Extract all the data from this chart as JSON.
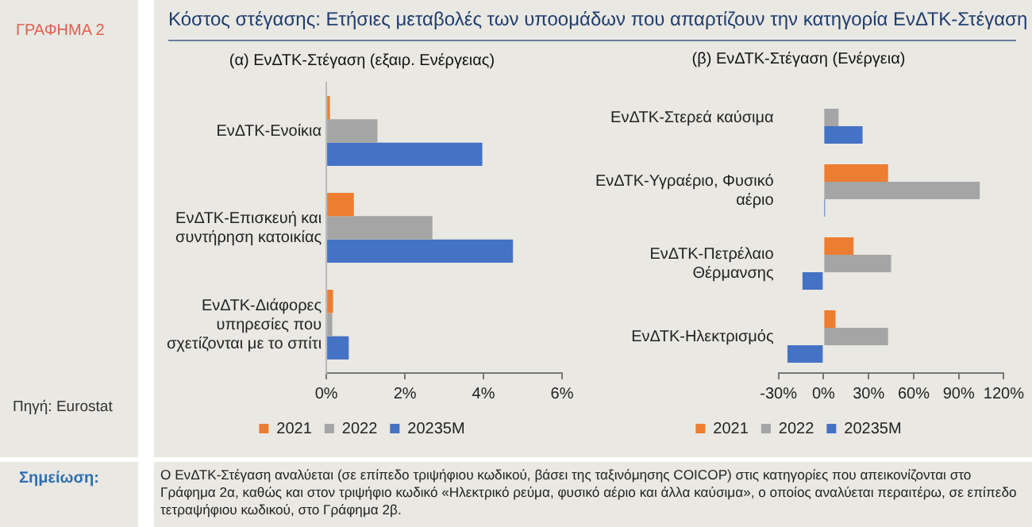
{
  "chart_data": [
    {
      "type": "bar",
      "orientation": "horizontal",
      "title": "Κόστος στέγασης: Ετήσιες μεταβολές  των υποομάδων που απαρτίζουν την κατηγορία ΕνΔΤΚ-Στέγαση",
      "subtitle": "(α) ΕνΔΤΚ-Στέγαση (εξαιρ. Ενέργειας)",
      "categories": [
        "ΕνΔΤΚ-Ενοίκια",
        "ΕνΔΤΚ-Επισκευή και συντήρηση κατοικίας",
        "ΕνΔΤΚ-Διάφορες υπηρεσίες που σχετίζονται με το σπίτι"
      ],
      "series": [
        {
          "name": "2021",
          "color": "#ed7d31",
          "values": [
            0.09,
            0.7,
            0.17
          ]
        },
        {
          "name": "2022",
          "color": "#a5a5a5",
          "values": [
            1.3,
            2.7,
            0.15
          ]
        },
        {
          "name": "20235M",
          "color": "#4472c4",
          "values": [
            3.97,
            4.75,
            0.57
          ]
        }
      ],
      "xlim": [
        0,
        6
      ],
      "xticks": [
        {
          "value": 0,
          "label": "0%"
        },
        {
          "value": 2,
          "label": "2%"
        },
        {
          "value": 4,
          "label": "4%"
        },
        {
          "value": 6,
          "label": "6%"
        }
      ],
      "grid": false,
      "legend": "bottom",
      "annotations": [
        "ΓΡΑΦΗΜΑ 2",
        "Πηγή: Eurostat",
        "Σημείωση:",
        "Ο ΕνΔΤΚ-Στέγαση αναλύεται (σε επίπεδο τριψήφιου κωδικού, βάσει της ταξινόμησης COICOP) στις κατηγορίες που απεικονίζονται στο Γράφημα 2α, καθώς και στον τριψήφιο κωδικό «Ηλεκτρικό ρεύμα, φυσικό αέριο και άλλα καύσιμα», ο οποίος αναλύεται περαιτέρω, σε επίπεδο τετραψήφιου κωδικού, στο Γράφημα 2β."
      ]
    },
    {
      "type": "bar",
      "orientation": "horizontal",
      "subtitle": "(β) ΕνΔΤΚ-Στέγαση (Ενέργεια)",
      "categories": [
        "ΕνΔΤΚ-Στερεά καύσιμα",
        "ΕνΔΤΚ-Υγραέριο, Φυσικό αέριο",
        "ΕνΔΤΚ-Πετρέλαιο Θέρμανσης",
        "ΕνΔΤΚ-Ηλεκτρισμός"
      ],
      "series": [
        {
          "name": "2021",
          "color": "#ed7d31",
          "values": [
            null,
            43,
            20,
            8
          ]
        },
        {
          "name": "2022",
          "color": "#a5a5a5",
          "values": [
            10,
            104,
            45,
            43
          ]
        },
        {
          "name": "20235M",
          "color": "#4472c4",
          "values": [
            26,
            1,
            -14,
            -24
          ]
        }
      ],
      "xlim": [
        -30,
        120
      ],
      "xticks": [
        {
          "value": -30,
          "label": "-30%"
        },
        {
          "value": 0,
          "label": "0%"
        },
        {
          "value": 30,
          "label": "30%"
        },
        {
          "value": 60,
          "label": "60%"
        },
        {
          "value": 90,
          "label": "90%"
        },
        {
          "value": 120,
          "label": "120%"
        }
      ],
      "grid": false,
      "legend": "bottom"
    }
  ]
}
